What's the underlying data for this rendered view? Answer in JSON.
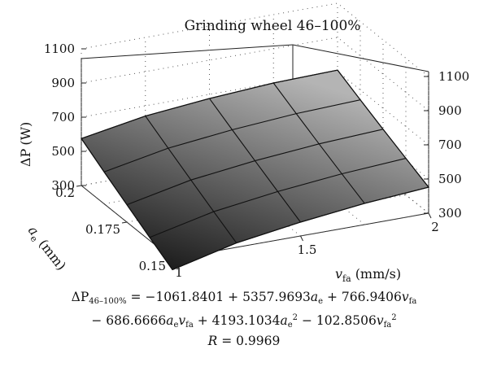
{
  "chart_data": {
    "type": "surface3d",
    "title": "Grinding wheel 46–100%",
    "zlabel_prefix": "ΔP",
    "zlabel_unit": "(W)",
    "xlabel_main": "v",
    "xlabel_sub": "fa",
    "xlabel_unit": "(mm/s)",
    "ylabel_main": "a",
    "ylabel_sub": "e",
    "ylabel_unit": "(mm)",
    "x_range": [
      1,
      2
    ],
    "y_range": [
      0.15,
      0.2
    ],
    "z_range": [
      300,
      1100
    ],
    "x_ticks": [
      "1",
      "1.5",
      "2"
    ],
    "y_ticks": [
      "0.15",
      "0.175",
      "0.2"
    ],
    "z_ticks_left": [
      "300",
      "500",
      "700",
      "900",
      "1100"
    ],
    "z_ticks_right": [
      "300",
      "500",
      "700",
      "900",
      "1100"
    ],
    "surface_grid": {
      "x": [
        1,
        1.25,
        1.5,
        1.75,
        2
      ],
      "y": [
        0.15,
        0.1625,
        0.175,
        0.1875,
        0.2
      ],
      "z_rows": [
        [
          236,
          326,
          381,
          424,
          452
        ],
        [
          318,
          402,
          453,
          490,
          514
        ],
        [
          402,
          480,
          526,
          558,
          577
        ],
        [
          487,
          559,
          600,
          628,
          642
        ],
        [
          575,
          640,
          676,
          700,
          709
        ]
      ]
    },
    "equation_line1": "ΔP46–100% = −1061.8401 + 5357.9693ae + 766.9406vfa",
    "equation_line2": "− 686.6666aevfa + 4193.1034ae2 − 102.8506vfa2",
    "r_value": "R = 0.9969"
  },
  "equation": {
    "lhs": "ΔP",
    "lhs_sub": "46–100%",
    "eq": " = −1061.8401 + 5357.9693",
    "t1": "a",
    "t1_sub": "e",
    "plus1": " + 766.9406",
    "t2": "v",
    "t2_sub": "fa",
    "minus1": "− 686.6666",
    "t3": "a",
    "t3_sub": "e",
    "t4": "v",
    "t4_sub": "fa",
    "plus2": " + 4193.1034",
    "t5": "a",
    "t5_sub": "e",
    "sq": "2",
    "minus2": " − 102.8506",
    "t6": "v",
    "t6_sub": "fa",
    "sq2": "2",
    "r_label": "R",
    "r_eq": " = 0.9969"
  }
}
